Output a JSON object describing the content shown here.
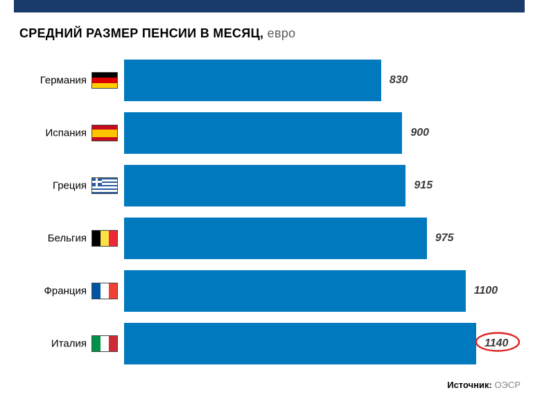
{
  "title_main": "СРЕДНИЙ РАЗМЕР ПЕНСИИ В МЕСЯЦ,",
  "title_unit": "евро",
  "source_label": "Источник:",
  "source_value": "ОЭСР",
  "header_bar_color": "#1a3a6b",
  "bar_color": "#0079bf",
  "value_color": "#3a3a3a",
  "max_bar_pct": 100,
  "circle_stroke": "#d22",
  "rows": [
    {
      "label": "Германия",
      "value": "830",
      "pct": 73,
      "highlight": false,
      "flag": "h",
      "c": [
        "#000000",
        "#dd0000",
        "#ffce00"
      ]
    },
    {
      "label": "Испания",
      "value": "900",
      "pct": 79,
      "highlight": false,
      "flag": "spain",
      "c": [
        "#c60b1e",
        "#ffc400",
        "#c60b1e"
      ]
    },
    {
      "label": "Греция",
      "value": "915",
      "pct": 80,
      "highlight": false,
      "flag": "greece",
      "c": [
        "#2b5aa0",
        "#ffffff"
      ]
    },
    {
      "label": "Бельгия",
      "value": "975",
      "pct": 86,
      "highlight": false,
      "flag": "v",
      "c": [
        "#000000",
        "#fae042",
        "#ed2939"
      ]
    },
    {
      "label": "Франция",
      "value": "1100",
      "pct": 97,
      "highlight": false,
      "flag": "v",
      "c": [
        "#0055a4",
        "#ffffff",
        "#ef4135"
      ]
    },
    {
      "label": "Италия",
      "value": "1140",
      "pct": 100,
      "highlight": true,
      "flag": "v",
      "c": [
        "#009246",
        "#ffffff",
        "#ce2b37"
      ]
    }
  ]
}
